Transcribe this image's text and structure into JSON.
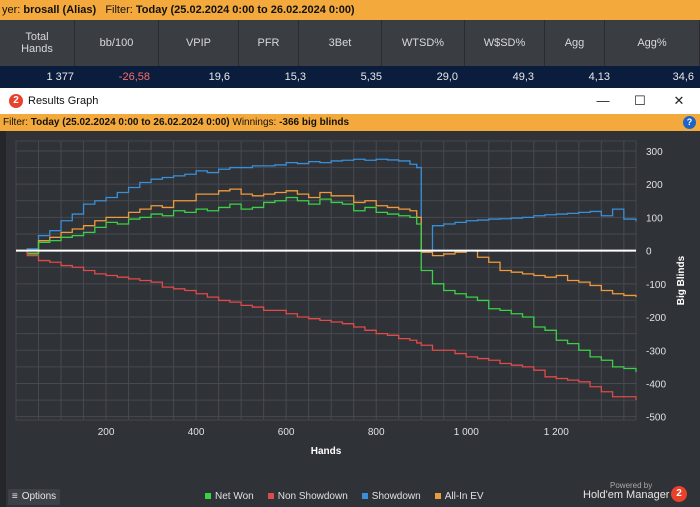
{
  "top_bar": {
    "player_label": "yer:",
    "player": "brosall (Alias)",
    "filter_label": "Filter:",
    "filter": "Today (25.02.2024 0:00 to 26.02.2024 0:00)"
  },
  "stats": {
    "headers": [
      "Total\nHands",
      "bb/100",
      "VPIP",
      "PFR",
      "3Bet",
      "WTSD%",
      "W$SD%",
      "Agg",
      "Agg%"
    ],
    "values": [
      "1 377",
      "-26,58",
      "19,6",
      "15,3",
      "5,35",
      "29,0",
      "49,3",
      "4,13",
      "34,6"
    ]
  },
  "window": {
    "logo": "2",
    "title": "Results Graph",
    "minimize": "—",
    "maximize": "☐",
    "close": "✕"
  },
  "filter_bar": {
    "filter_label": "Filter:",
    "filter": "Today (25.02.2024 0:00 to 26.02.2024 0:00)",
    "winnings_label": "Winnings:",
    "winnings": "-366 big blinds",
    "help": "?"
  },
  "footer": {
    "options": "Options",
    "options_icon": "≡",
    "powered_by": "Powered by",
    "brand": "Hold'em Manager",
    "brand_logo": "2"
  },
  "chart_data": {
    "type": "line",
    "xlabel": "Hands",
    "ylabel": "Big Blinds",
    "xlim": [
      0,
      1377
    ],
    "ylim": [
      -510,
      330
    ],
    "x_ticks": [
      200,
      400,
      600,
      800,
      1000,
      1200
    ],
    "x_tick_labels": [
      "200",
      "400",
      "600",
      "800",
      "1 000",
      "1 200"
    ],
    "y_ticks": [
      300,
      200,
      100,
      0,
      -100,
      -200,
      -300,
      -400,
      -500
    ],
    "legend_position": "bottom",
    "grid": true,
    "x": [
      0,
      25,
      50,
      75,
      100,
      125,
      150,
      175,
      200,
      225,
      250,
      275,
      300,
      325,
      350,
      375,
      400,
      425,
      450,
      475,
      500,
      525,
      550,
      575,
      600,
      625,
      650,
      675,
      700,
      725,
      750,
      775,
      800,
      825,
      850,
      875,
      890,
      900,
      925,
      950,
      975,
      1000,
      1025,
      1050,
      1075,
      1100,
      1125,
      1150,
      1175,
      1200,
      1225,
      1250,
      1275,
      1300,
      1325,
      1350,
      1377
    ],
    "series": [
      {
        "name": "Net Won",
        "color": "#3bd146",
        "values": [
          0,
          -10,
          25,
          30,
          40,
          45,
          55,
          70,
          85,
          80,
          95,
          100,
          110,
          105,
          120,
          115,
          125,
          120,
          130,
          140,
          125,
          130,
          145,
          150,
          160,
          150,
          140,
          155,
          145,
          140,
          120,
          130,
          115,
          110,
          105,
          100,
          80,
          -60,
          -100,
          -120,
          -130,
          -140,
          -150,
          -175,
          -180,
          -190,
          -200,
          -230,
          -240,
          -270,
          -280,
          -300,
          -320,
          -330,
          -350,
          -355,
          -366
        ]
      },
      {
        "name": "Non Showdown",
        "color": "#e04a48",
        "values": [
          0,
          -15,
          -30,
          -35,
          -45,
          -50,
          -60,
          -70,
          -75,
          -80,
          -85,
          -90,
          -95,
          -110,
          -115,
          -120,
          -130,
          -140,
          -150,
          -155,
          -165,
          -170,
          -180,
          -180,
          -190,
          -200,
          -205,
          -210,
          -215,
          -220,
          -230,
          -240,
          -250,
          -255,
          -265,
          -270,
          -278,
          -285,
          -300,
          -300,
          -310,
          -320,
          -325,
          -330,
          -340,
          -345,
          -350,
          -360,
          -380,
          -385,
          -390,
          -395,
          -410,
          -425,
          -440,
          -440,
          -450
        ]
      },
      {
        "name": "Showdown",
        "color": "#3a8fd9",
        "values": [
          0,
          5,
          45,
          60,
          90,
          110,
          140,
          150,
          160,
          175,
          190,
          205,
          215,
          220,
          225,
          230,
          240,
          235,
          245,
          250,
          250,
          255,
          255,
          258,
          265,
          262,
          268,
          265,
          270,
          272,
          275,
          272,
          275,
          273,
          270,
          260,
          250,
          0,
          75,
          80,
          85,
          90,
          92,
          95,
          96,
          98,
          100,
          105,
          108,
          110,
          112,
          115,
          118,
          105,
          125,
          95,
          88
        ]
      },
      {
        "name": "All-In EV",
        "color": "#ef9a3c",
        "values": [
          0,
          -8,
          30,
          40,
          55,
          65,
          75,
          90,
          100,
          100,
          115,
          125,
          135,
          130,
          150,
          150,
          170,
          170,
          180,
          185,
          170,
          165,
          170,
          175,
          180,
          170,
          160,
          175,
          165,
          165,
          145,
          150,
          135,
          130,
          125,
          120,
          100,
          -5,
          -15,
          -10,
          -5,
          0,
          -20,
          -35,
          -60,
          -65,
          -70,
          -75,
          -80,
          -75,
          -90,
          -95,
          -105,
          -120,
          -130,
          -135,
          -140
        ]
      }
    ]
  }
}
